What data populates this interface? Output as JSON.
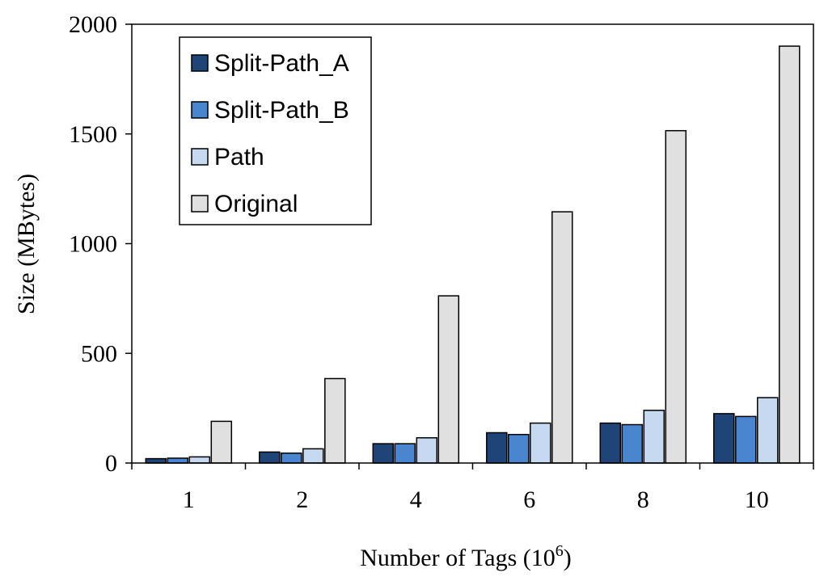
{
  "chart_data": {
    "type": "bar",
    "title": "",
    "xlabel": "Number of Tags (10",
    "xlabel_superscript": "6",
    "xlabel_suffix": ")",
    "ylabel": "Size (MBytes)",
    "categories": [
      "1",
      "2",
      "4",
      "6",
      "8",
      "10"
    ],
    "ylim": [
      0,
      2000
    ],
    "yticks": [
      "0",
      "500",
      "1000",
      "1500",
      "2000"
    ],
    "grid": false,
    "legend_position": "top-left",
    "series": [
      {
        "name": "Split-Path_A",
        "color": "#1f4477",
        "values": [
          20,
          50,
          88,
          138,
          182,
          225
        ]
      },
      {
        "name": "Split-Path_B",
        "color": "#4a86d0",
        "values": [
          22,
          45,
          88,
          130,
          175,
          212
        ]
      },
      {
        "name": "Path",
        "color": "#c6d9f0",
        "values": [
          28,
          65,
          115,
          182,
          240,
          298
        ]
      },
      {
        "name": "Original",
        "color": "#e0e0e0",
        "values": [
          190,
          385,
          762,
          1145,
          1515,
          1900
        ]
      }
    ]
  }
}
